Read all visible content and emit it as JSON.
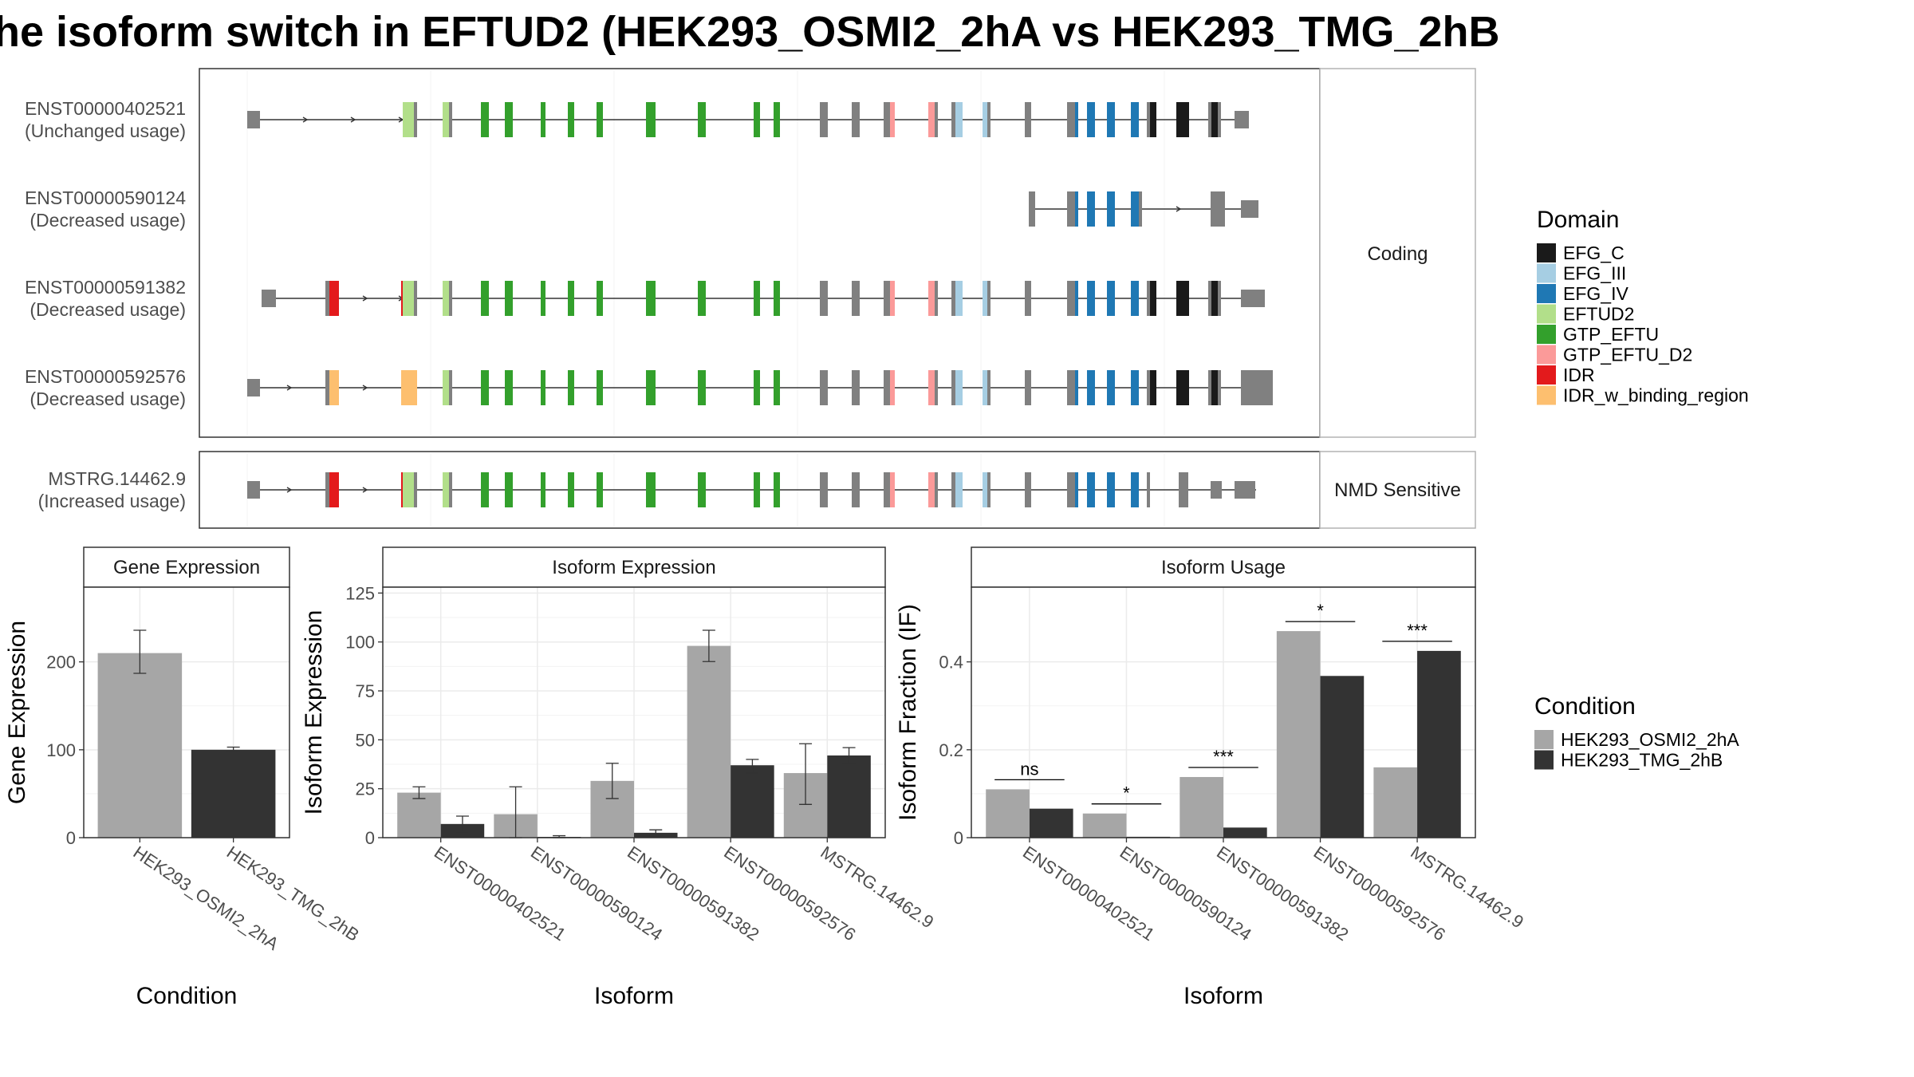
{
  "title": "he isoform switch in EFTUD2 (HEK293_OSMI2_2hA vs HEK293_TMG_2hB",
  "colors": {
    "cond1": "#a6a6a6",
    "cond2": "#333333",
    "intron": "#333333",
    "noncoding_exon": "#808080"
  },
  "domains": [
    {
      "name": "EFG_C",
      "color": "#1a1a1a"
    },
    {
      "name": "EFG_III",
      "color": "#a6cee3"
    },
    {
      "name": "EFG_IV",
      "color": "#1f78b4"
    },
    {
      "name": "EFTUD2",
      "color": "#b2df8a"
    },
    {
      "name": "GTP_EFTU",
      "color": "#33a02c"
    },
    {
      "name": "GTP_EFTU_D2",
      "color": "#fb9a99"
    },
    {
      "name": "IDR",
      "color": "#e31a1c"
    },
    {
      "name": "IDR_w_binding_region",
      "color": "#fdbf6f"
    }
  ],
  "legend": {
    "domain_title": "Domain",
    "condition_title": "Condition",
    "conditions": [
      "HEK293_OSMI2_2hA",
      "HEK293_TMG_2hB"
    ]
  },
  "structure": {
    "groups": [
      {
        "label": "Coding",
        "transcripts": [
          {
            "id": "ENST00000402521",
            "usage": "(Unchanged usage)"
          },
          {
            "id": "ENST00000590124",
            "usage": "(Decreased usage)"
          },
          {
            "id": "ENST00000591382",
            "usage": "(Decreased usage)"
          },
          {
            "id": "ENST00000592576",
            "usage": "(Decreased usage)"
          }
        ]
      },
      {
        "label": "NMD Sensitive",
        "transcripts": [
          {
            "id": "MSTRG.14462.9",
            "usage": "(Increased usage)"
          }
        ]
      }
    ]
  },
  "chart_data": [
    {
      "type": "bar",
      "title": "Gene Expression",
      "xlabel": "Condition",
      "ylabel": "Gene Expression",
      "categories": [
        "HEK293_OSMI2_2hA",
        "HEK293_TMG_2hB"
      ],
      "values": [
        210,
        100
      ],
      "errors": [
        [
          187,
          236
        ],
        [
          98,
          103
        ]
      ],
      "yticks": [
        0,
        100,
        200
      ],
      "ylim": [
        0,
        285
      ]
    },
    {
      "type": "bar",
      "title": "Isoform Expression",
      "xlabel": "Isoform",
      "ylabel": "Isoform Expression",
      "categories": [
        "ENST00000402521",
        "ENST00000590124",
        "ENST00000591382",
        "ENST00000592576",
        "MSTRG.14462.9"
      ],
      "series": [
        {
          "name": "HEK293_OSMI2_2hA",
          "values": [
            23,
            12,
            29,
            98,
            33
          ],
          "errors": [
            [
              20,
              26
            ],
            [
              0,
              26
            ],
            [
              20,
              38
            ],
            [
              90,
              106
            ],
            [
              17,
              48
            ]
          ]
        },
        {
          "name": "HEK293_TMG_2hB",
          "values": [
            7,
            0.4,
            2.5,
            37,
            42
          ],
          "errors": [
            [
              3,
              11
            ],
            [
              0,
              1
            ],
            [
              1,
              4
            ],
            [
              33,
              40
            ],
            [
              38,
              46
            ]
          ]
        }
      ],
      "yticks": [
        0,
        25,
        50,
        75,
        100,
        125
      ],
      "ylim": [
        0,
        128
      ]
    },
    {
      "type": "bar",
      "title": "Isoform Usage",
      "xlabel": "Isoform",
      "ylabel": "Isoform Fraction (IF)",
      "categories": [
        "ENST00000402521",
        "ENST00000590124",
        "ENST00000591382",
        "ENST00000592576",
        "MSTRG.14462.9"
      ],
      "series": [
        {
          "name": "HEK293_OSMI2_2hA",
          "values": [
            0.11,
            0.055,
            0.138,
            0.47,
            0.16
          ]
        },
        {
          "name": "HEK293_TMG_2hB",
          "values": [
            0.066,
            0.002,
            0.023,
            0.368,
            0.425
          ]
        }
      ],
      "significance": [
        "ns",
        "*",
        "***",
        "*",
        "***"
      ],
      "yticks": [
        0.0,
        0.2,
        0.4
      ],
      "ylim": [
        0,
        0.57
      ]
    }
  ]
}
